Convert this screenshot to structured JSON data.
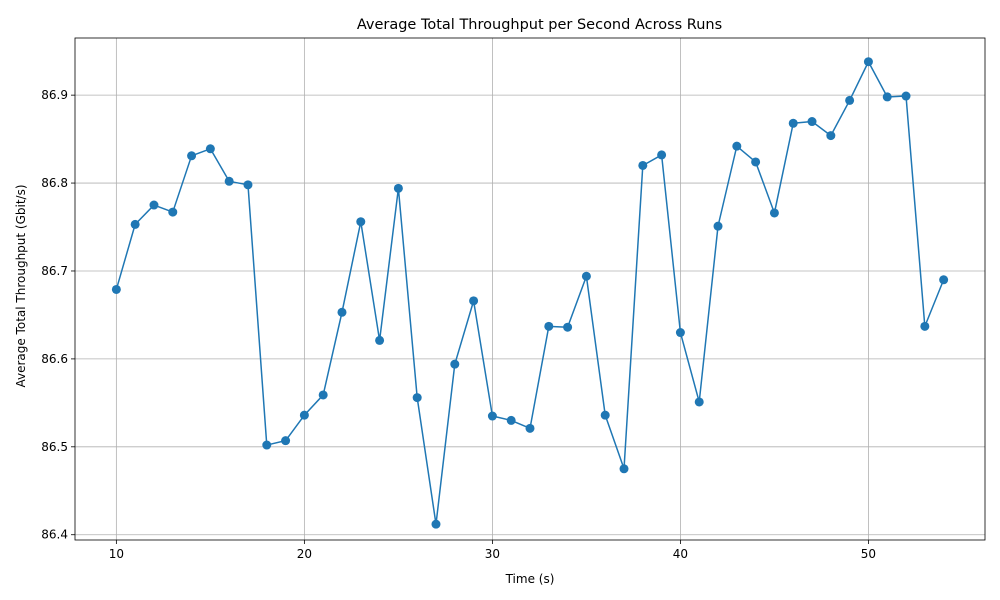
{
  "chart_data": {
    "type": "line",
    "title": "Average Total Throughput per Second Across Runs",
    "xlabel": "Time (s)",
    "ylabel": "Average Total Throughput (Gbit/s)",
    "xlim": [
      7.8,
      56.2
    ],
    "ylim": [
      86.394,
      86.965
    ],
    "x_ticks": [
      10,
      20,
      30,
      40,
      50
    ],
    "y_ticks": [
      86.4,
      86.5,
      86.6,
      86.7,
      86.8,
      86.9
    ],
    "grid": true,
    "series": [
      {
        "color": "#1f77b4",
        "marker": "circle",
        "x": [
          10,
          11,
          12,
          13,
          14,
          15,
          16,
          17,
          18,
          19,
          20,
          21,
          22,
          23,
          24,
          25,
          26,
          27,
          28,
          29,
          30,
          31,
          32,
          33,
          34,
          35,
          36,
          37,
          38,
          39,
          40,
          41,
          42,
          43,
          44,
          45,
          46,
          47,
          48,
          49,
          50,
          51,
          52,
          53,
          54
        ],
        "y": [
          86.679,
          86.753,
          86.775,
          86.767,
          86.831,
          86.839,
          86.802,
          86.798,
          86.502,
          86.507,
          86.536,
          86.559,
          86.653,
          86.756,
          86.621,
          86.794,
          86.556,
          86.412,
          86.594,
          86.666,
          86.535,
          86.53,
          86.521,
          86.637,
          86.636,
          86.694,
          86.536,
          86.475,
          86.82,
          86.832,
          86.63,
          86.551,
          86.751,
          86.842,
          86.824,
          86.766,
          86.868,
          86.87,
          86.854,
          86.894,
          86.938,
          86.898,
          86.899,
          86.637,
          86.69
        ]
      }
    ]
  }
}
